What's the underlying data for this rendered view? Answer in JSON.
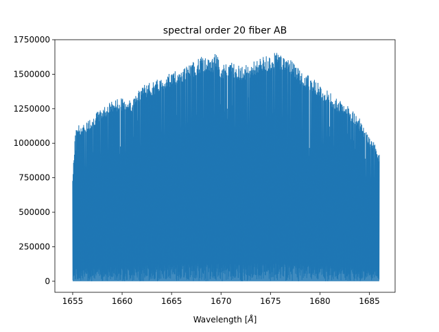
{
  "chart_data": {
    "type": "line",
    "title": "spectral order 20 fiber AB",
    "xlabel": "Wavelength [",
    "xlabel_unit": "Å",
    "xlabel_close": "]",
    "ylabel": "",
    "xlim": [
      1653.2,
      1687.6
    ],
    "ylim": [
      -80000,
      1750000
    ],
    "x_ticks": [
      1655,
      1660,
      1665,
      1670,
      1675,
      1680,
      1685
    ],
    "y_ticks": [
      0,
      250000,
      500000,
      750000,
      1000000,
      1250000,
      1500000,
      1750000
    ],
    "x_tick_labels": [
      "1655",
      "1660",
      "1665",
      "1670",
      "1675",
      "1680",
      "1685"
    ],
    "y_tick_labels": [
      "0",
      "250000",
      "500000",
      "750000",
      "1000000",
      "1250000",
      "1500000",
      "1750000"
    ],
    "grid": false,
    "color": "#1f77b4",
    "series": [
      {
        "x": [
          1655.0,
          1655.3,
          1656.0,
          1657.0,
          1658.0,
          1659.0,
          1660.0,
          1661.0,
          1662.0,
          1663.0,
          1664.0,
          1665.0,
          1666.0,
          1667.0,
          1668.0,
          1669.0,
          1669.5,
          1670.0,
          1671.0,
          1672.0,
          1673.0,
          1674.0,
          1675.0,
          1675.5,
          1676.0,
          1677.0,
          1678.0,
          1679.0,
          1680.0,
          1681.0,
          1682.0,
          1683.0,
          1684.0,
          1684.5,
          1685.0,
          1685.5,
          1686.0
        ],
        "y": [
          750000,
          1140000,
          1130000,
          1200000,
          1260000,
          1310000,
          1330000,
          1320000,
          1430000,
          1440000,
          1480000,
          1520000,
          1540000,
          1580000,
          1630000,
          1610000,
          1660000,
          1560000,
          1600000,
          1560000,
          1580000,
          1620000,
          1640000,
          1660000,
          1650000,
          1620000,
          1530000,
          1490000,
          1430000,
          1370000,
          1310000,
          1260000,
          1180000,
          1100000,
          1040000,
          1010000,
          920000
        ]
      }
    ]
  }
}
